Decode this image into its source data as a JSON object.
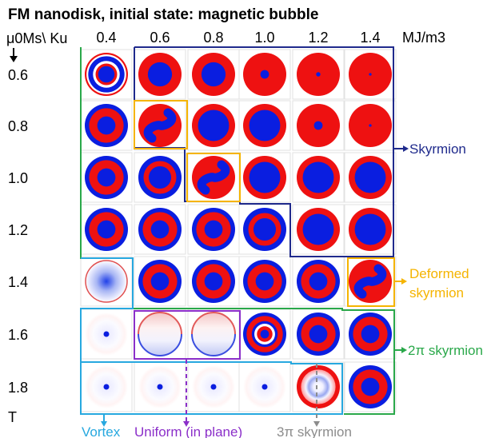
{
  "title": "FM nanodisk, initial state: magnetic bubble",
  "row_axis_label": "μ0Ms\\ Ku",
  "col_unit": "MJ/m3",
  "row_unit": "T",
  "columns": [
    "0.4",
    "0.6",
    "0.8",
    "1.0",
    "1.2",
    "1.4"
  ],
  "rows": [
    "0.6",
    "0.8",
    "1.0",
    "1.2",
    "1.4",
    "1.6",
    "1.8"
  ],
  "states": {
    "skyrmion": "Skyrmion",
    "deformed": "Deformed skyrmion",
    "twopi": "2π skyrmion",
    "vortex": "Vortex",
    "uniform": "Uniform (in plane)",
    "threepi": "3π skyrmion"
  },
  "colors": {
    "red": "#ee1111",
    "blue": "#0a1ee0",
    "skyrmion": "#1f2a8c",
    "deformed": "#f5b400",
    "twopi": "#2aa84a",
    "vortex": "#27a8df",
    "uniform": "#8b2fc9",
    "threepi": "#8c8c8c"
  },
  "grid": [
    [
      "ring_multi",
      "sky_m",
      "sky_m",
      "sky_s",
      "sky_xs",
      "sky_xxs"
    ],
    [
      "twopi",
      "deformed",
      "sky_l",
      "sky_l",
      "sky_s",
      "sky_xxs"
    ],
    [
      "twopi",
      "twopi_b",
      "deformed",
      "sky_l",
      "sky_l",
      "sky_l"
    ],
    [
      "twopi",
      "twopi",
      "twopi",
      "twopi_b",
      "sky_l",
      "sky_l"
    ],
    [
      "vortex_big",
      "twopi",
      "twopi",
      "twopi",
      "twopi",
      "deformed"
    ],
    [
      "vortex",
      "uniform",
      "uniform",
      "threepi",
      "twopi",
      "twopi"
    ],
    [
      "vortex",
      "vortex",
      "vortex",
      "vortex",
      "threepi_w",
      "twopi"
    ]
  ]
}
